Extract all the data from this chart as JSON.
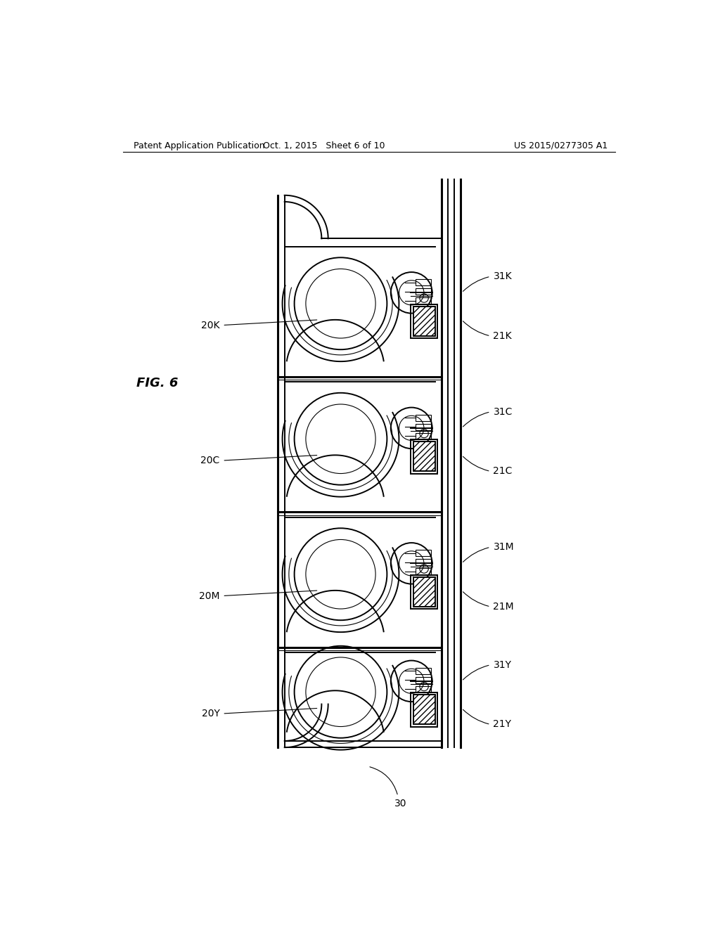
{
  "bg_color": "#ffffff",
  "line_color": "#000000",
  "header_left": "Patent Application Publication",
  "header_mid": "Oct. 1, 2015   Sheet 6 of 10",
  "header_right": "US 2015/0277305 A1",
  "fig_label": "FIG. 6",
  "unit_labels_left": [
    "20K",
    "20C",
    "20M",
    "20Y"
  ],
  "unit_labels_21": [
    "21K",
    "21C",
    "21M",
    "21Y"
  ],
  "unit_labels_31": [
    "31K",
    "31C",
    "31M",
    "31Y"
  ],
  "bottom_label": "30",
  "lw_thick": 2.2,
  "lw_main": 1.4,
  "lw_thin": 0.8
}
